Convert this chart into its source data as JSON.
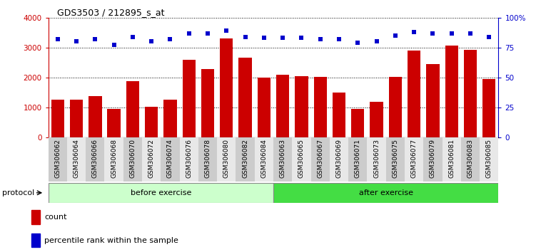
{
  "title": "GDS3503 / 212895_s_at",
  "samples": [
    "GSM306062",
    "GSM306064",
    "GSM306066",
    "GSM306068",
    "GSM306070",
    "GSM306072",
    "GSM306074",
    "GSM306076",
    "GSM306078",
    "GSM306080",
    "GSM306082",
    "GSM306084",
    "GSM306063",
    "GSM306065",
    "GSM306067",
    "GSM306069",
    "GSM306071",
    "GSM306073",
    "GSM306075",
    "GSM306077",
    "GSM306079",
    "GSM306081",
    "GSM306083",
    "GSM306085"
  ],
  "counts": [
    1250,
    1270,
    1370,
    940,
    1880,
    1020,
    1260,
    2600,
    2280,
    3310,
    2660,
    2000,
    2090,
    2050,
    2020,
    1490,
    940,
    1190,
    2030,
    2900,
    2460,
    3060,
    2930,
    1950
  ],
  "percentiles": [
    82,
    80,
    82,
    77,
    84,
    80,
    82,
    87,
    87,
    89,
    84,
    83,
    83,
    83,
    82,
    82,
    79,
    80,
    85,
    88,
    87,
    87,
    87,
    84
  ],
  "bar_color": "#cc0000",
  "dot_color": "#0000cc",
  "before_count": 12,
  "after_count": 12,
  "before_color": "#ccffcc",
  "after_color": "#44dd44",
  "before_label": "before exercise",
  "after_label": "after exercise",
  "protocol_label": "protocol",
  "legend_count": "count",
  "legend_percentile": "percentile rank within the sample",
  "ylim_left": [
    0,
    4000
  ],
  "ylim_right": [
    0,
    100
  ],
  "yticks_left": [
    0,
    1000,
    2000,
    3000,
    4000
  ],
  "ytick_labels_left": [
    "0",
    "1000",
    "2000",
    "3000",
    "4000"
  ],
  "yticks_right": [
    0,
    25,
    50,
    75,
    100
  ],
  "ytick_labels_right": [
    "0",
    "25",
    "50",
    "75",
    "100%"
  ],
  "fig_width": 7.51,
  "fig_height": 3.54,
  "dpi": 100
}
